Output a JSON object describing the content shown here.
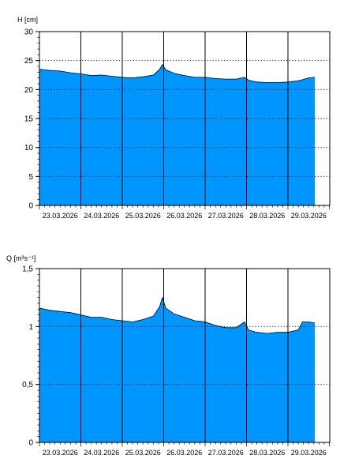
{
  "chart_data": [
    {
      "type": "area",
      "ylabel": "H [cm]",
      "ylim": [
        0,
        30
      ],
      "yticks": [
        0,
        5,
        10,
        15,
        20,
        25,
        30
      ],
      "ytick_labels": [
        "0",
        "5",
        "10",
        "15",
        "20",
        "25",
        "30"
      ],
      "dotted_y": [
        25,
        20,
        15,
        10,
        5
      ],
      "days": [
        "23.03.2026",
        "24.03.2026",
        "25.03.2026",
        "26.03.2026",
        "27.03.2026",
        "28.03.2026",
        "29.03.2026"
      ],
      "x_range_days": [
        0,
        6.65
      ],
      "grid": "vertical solid at day boundaries, horizontal dotted",
      "fill_color": "#0096ff",
      "series": [
        {
          "x": [
            0,
            0.25,
            0.5,
            0.75,
            1.0,
            1.25,
            1.5,
            1.75,
            2.0,
            2.25,
            2.5,
            2.75,
            2.9,
            2.97,
            3.05,
            3.25,
            3.5,
            3.75,
            4.0,
            4.25,
            4.5,
            4.75,
            4.95,
            5.05,
            5.25,
            5.5,
            5.75,
            6.0,
            6.25,
            6.5,
            6.65
          ],
          "values": [
            23.5,
            23.3,
            23.2,
            22.9,
            22.7,
            22.4,
            22.5,
            22.3,
            22.1,
            22.0,
            22.2,
            22.5,
            23.5,
            24.3,
            23.4,
            22.8,
            22.4,
            22.1,
            22.1,
            21.9,
            21.8,
            21.8,
            22.1,
            21.6,
            21.3,
            21.2,
            21.2,
            21.3,
            21.5,
            22.0,
            22.1
          ]
        }
      ]
    },
    {
      "type": "area",
      "ylabel": "Q [m³s⁻¹]",
      "ylim": [
        0,
        1.5
      ],
      "yticks": [
        0,
        0.5,
        1,
        1.5
      ],
      "ytick_labels": [
        "0",
        "0,5",
        "1",
        "1,5"
      ],
      "dotted_y": [
        1,
        0.5
      ],
      "days": [
        "23.03.2026",
        "24.03.2026",
        "25.03.2026",
        "26.03.2026",
        "27.03.2026",
        "28.03.2026",
        "29.03.2026"
      ],
      "x_range_days": [
        0,
        6.65
      ],
      "grid": "vertical solid at day boundaries, horizontal dotted",
      "fill_color": "#0096ff",
      "series": [
        {
          "x": [
            0,
            0.25,
            0.5,
            0.75,
            1.0,
            1.25,
            1.5,
            1.75,
            2.0,
            2.25,
            2.5,
            2.75,
            2.9,
            2.97,
            3.05,
            3.25,
            3.5,
            3.75,
            4.0,
            4.25,
            4.5,
            4.75,
            4.95,
            5.05,
            5.25,
            5.5,
            5.75,
            6.0,
            6.25,
            6.35,
            6.5,
            6.65
          ],
          "values": [
            1.16,
            1.14,
            1.13,
            1.12,
            1.1,
            1.08,
            1.08,
            1.06,
            1.05,
            1.04,
            1.06,
            1.09,
            1.17,
            1.25,
            1.16,
            1.11,
            1.08,
            1.05,
            1.04,
            1.01,
            0.99,
            0.99,
            1.04,
            0.97,
            0.95,
            0.94,
            0.95,
            0.95,
            0.97,
            1.04,
            1.04,
            1.03
          ]
        }
      ]
    }
  ]
}
